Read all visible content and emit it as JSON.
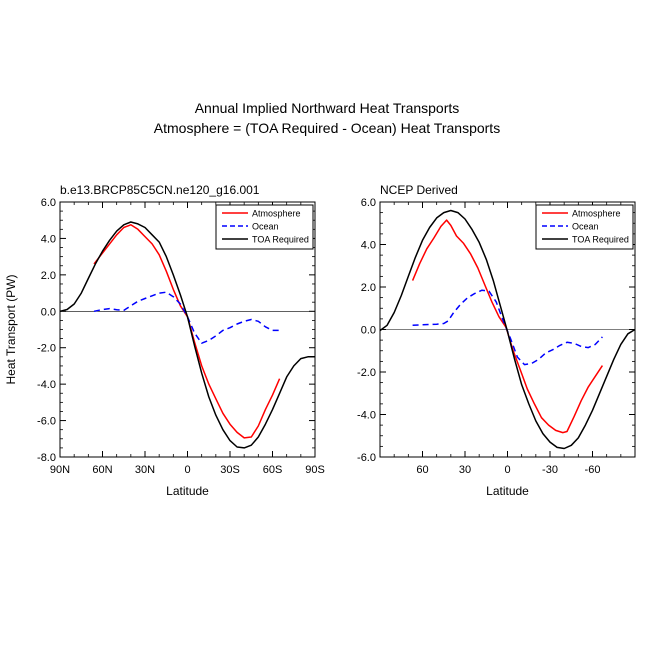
{
  "figure": {
    "title_line1": "Annual Implied Northward Heat Transports",
    "title_line2": "Atmosphere = (TOA Required - Ocean) Heat Transports"
  },
  "chart_data": [
    {
      "type": "line",
      "title": "b.e13.BRCP85C5CN.ne120_g16.001",
      "xlabel": "Latitude",
      "ylabel": "Heat Transport (PW)",
      "xlim": [
        90,
        -90
      ],
      "ylim": [
        -8,
        6
      ],
      "xticks": [
        90,
        60,
        30,
        0,
        -30,
        -60,
        -90
      ],
      "xtick_labels": [
        "90N",
        "60N",
        "30N",
        "0",
        "30S",
        "60S",
        "90S"
      ],
      "yticks": [
        6,
        4,
        2,
        0,
        -2,
        -4,
        -6,
        -8
      ],
      "ytick_labels": [
        "6.0",
        "4.0",
        "2.0",
        "0.0",
        "-2.0",
        "-4.0",
        "-6.0",
        "-8.0"
      ],
      "legend_position": "top-right",
      "series": [
        {
          "name": "Atmosphere",
          "color": "#ff0000",
          "dash": "solid",
          "x": [
            66,
            60,
            55,
            50,
            45,
            40,
            35,
            30,
            25,
            20,
            15,
            10,
            5,
            0,
            -5,
            -10,
            -15,
            -20,
            -25,
            -30,
            -35,
            -40,
            -45,
            -50,
            -55,
            -60,
            -65
          ],
          "y": [
            2.6,
            3.2,
            3.7,
            4.2,
            4.6,
            4.75,
            4.5,
            4.1,
            3.7,
            3.1,
            2.2,
            1.2,
            0.3,
            -0.3,
            -1.7,
            -3.0,
            -4.0,
            -4.8,
            -5.6,
            -6.2,
            -6.65,
            -6.95,
            -6.9,
            -6.3,
            -5.4,
            -4.6,
            -3.7
          ]
        },
        {
          "name": "Ocean",
          "color": "#0000ff",
          "dash": "dashed",
          "x": [
            66,
            60,
            55,
            50,
            45,
            40,
            35,
            30,
            25,
            20,
            15,
            10,
            5,
            0,
            -5,
            -10,
            -15,
            -20,
            -25,
            -30,
            -35,
            -40,
            -45,
            -50,
            -55,
            -60,
            -65
          ],
          "y": [
            0.0,
            0.1,
            0.15,
            0.08,
            0.05,
            0.3,
            0.55,
            0.7,
            0.85,
            1.0,
            1.05,
            0.8,
            0.4,
            -0.3,
            -1.2,
            -1.75,
            -1.6,
            -1.35,
            -1.05,
            -0.9,
            -0.7,
            -0.55,
            -0.45,
            -0.55,
            -0.85,
            -1.05,
            -1.05
          ]
        },
        {
          "name": "TOA Required",
          "color": "#000000",
          "dash": "solid",
          "x": [
            90,
            85,
            80,
            75,
            70,
            65,
            60,
            55,
            50,
            45,
            40,
            35,
            30,
            25,
            20,
            15,
            10,
            5,
            0,
            -5,
            -10,
            -15,
            -20,
            -25,
            -30,
            -35,
            -40,
            -45,
            -50,
            -55,
            -60,
            -65,
            -70,
            -75,
            -80,
            -85,
            -90
          ],
          "y": [
            0.0,
            0.1,
            0.4,
            1.0,
            1.8,
            2.6,
            3.3,
            3.9,
            4.4,
            4.75,
            4.9,
            4.8,
            4.6,
            4.2,
            3.8,
            3.0,
            2.0,
            0.9,
            -0.3,
            -1.9,
            -3.4,
            -4.7,
            -5.7,
            -6.5,
            -7.1,
            -7.45,
            -7.5,
            -7.35,
            -6.9,
            -6.2,
            -5.4,
            -4.5,
            -3.6,
            -3.0,
            -2.6,
            -2.5,
            -2.5
          ]
        }
      ]
    },
    {
      "type": "line",
      "title": "NCEP Derived",
      "xlabel": "Latitude",
      "ylabel": "",
      "xlim": [
        90,
        -90
      ],
      "ylim": [
        -6,
        6
      ],
      "xticks": [
        60,
        30,
        0,
        -30,
        -60
      ],
      "xtick_labels": [
        "60",
        "30",
        "0",
        "-30",
        "-60"
      ],
      "yticks": [
        6,
        4,
        2,
        0,
        -2,
        -4,
        -6
      ],
      "ytick_labels": [
        "6.0",
        "4.0",
        "2.0",
        "0.0",
        "-2.0",
        "-4.0",
        "-6.0"
      ],
      "legend_position": "top-right",
      "series": [
        {
          "name": "Atmosphere",
          "color": "#ff0000",
          "dash": "solid",
          "x": [
            67,
            62,
            57,
            52,
            47,
            43,
            40,
            36,
            31,
            26,
            21,
            16,
            11,
            6,
            1,
            -4,
            -9,
            -14,
            -19,
            -24,
            -29,
            -34,
            -39,
            -42,
            -47,
            -52,
            -57,
            -62,
            -67
          ],
          "y": [
            2.3,
            3.1,
            3.8,
            4.3,
            4.85,
            5.15,
            4.9,
            4.4,
            4.05,
            3.55,
            2.9,
            2.1,
            1.3,
            0.6,
            0.1,
            -1.0,
            -1.9,
            -2.8,
            -3.5,
            -4.15,
            -4.5,
            -4.75,
            -4.85,
            -4.8,
            -4.1,
            -3.35,
            -2.7,
            -2.2,
            -1.7
          ]
        },
        {
          "name": "Ocean",
          "color": "#0000ff",
          "dash": "dashed",
          "x": [
            67,
            60,
            50,
            45,
            42,
            38,
            33,
            28,
            23,
            18,
            13,
            8,
            3,
            -2,
            -7,
            -12,
            -17,
            -22,
            -27,
            -32,
            -37,
            -42,
            -47,
            -52,
            -57,
            -62,
            -67
          ],
          "y": [
            0.2,
            0.22,
            0.25,
            0.28,
            0.4,
            0.8,
            1.2,
            1.5,
            1.7,
            1.85,
            1.8,
            1.3,
            0.4,
            -0.4,
            -1.3,
            -1.65,
            -1.6,
            -1.4,
            -1.1,
            -0.95,
            -0.75,
            -0.6,
            -0.65,
            -0.8,
            -0.85,
            -0.7,
            -0.35
          ]
        },
        {
          "name": "TOA Required",
          "color": "#000000",
          "dash": "solid",
          "x": [
            90,
            85,
            80,
            75,
            70,
            65,
            60,
            55,
            50,
            45,
            40,
            35,
            30,
            25,
            20,
            15,
            10,
            5,
            0,
            -5,
            -10,
            -15,
            -20,
            -25,
            -30,
            -35,
            -40,
            -45,
            -50,
            -55,
            -60,
            -65,
            -70,
            -75,
            -80,
            -85,
            -90
          ],
          "y": [
            -0.05,
            0.2,
            0.8,
            1.6,
            2.5,
            3.4,
            4.2,
            4.8,
            5.25,
            5.5,
            5.6,
            5.5,
            5.2,
            4.7,
            4.1,
            3.3,
            2.3,
            1.1,
            -0.1,
            -1.4,
            -2.6,
            -3.5,
            -4.3,
            -4.9,
            -5.3,
            -5.55,
            -5.6,
            -5.45,
            -5.1,
            -4.5,
            -3.8,
            -3.0,
            -2.2,
            -1.4,
            -0.7,
            -0.2,
            0.0
          ]
        }
      ]
    }
  ]
}
